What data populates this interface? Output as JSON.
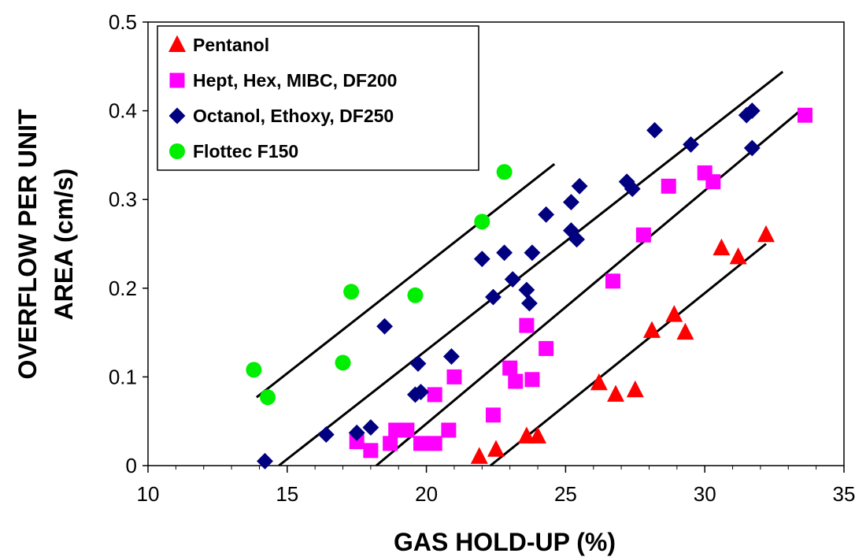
{
  "chart_data": {
    "type": "scatter",
    "title": "",
    "xlabel": "GAS HOLD-UP (%)",
    "ylabel_lines": [
      "OVERFLOW PER UNIT",
      "AREA (cm/s)"
    ],
    "xlim": [
      10,
      35
    ],
    "ylim": [
      0,
      0.5
    ],
    "x_ticks": [
      10,
      15,
      20,
      25,
      30,
      35
    ],
    "y_ticks": [
      0,
      0.1,
      0.2,
      0.3,
      0.4,
      0.5
    ],
    "x_tick_labels": [
      "10",
      "15",
      "20",
      "25",
      "30",
      "35"
    ],
    "y_tick_labels": [
      "0",
      "0.1",
      "0.2",
      "0.3",
      "0.4",
      "0.5"
    ],
    "grid": false,
    "legend_position": "top-left",
    "series": [
      {
        "name": "Pentanol",
        "marker": "triangle",
        "color": "#ff0000",
        "points": [
          [
            21.9,
            0.01
          ],
          [
            22.5,
            0.018
          ],
          [
            23.6,
            0.033
          ],
          [
            24.0,
            0.033
          ],
          [
            26.2,
            0.093
          ],
          [
            26.8,
            0.08
          ],
          [
            27.5,
            0.085
          ],
          [
            28.1,
            0.152
          ],
          [
            28.9,
            0.17
          ],
          [
            29.3,
            0.15
          ],
          [
            30.6,
            0.245
          ],
          [
            31.2,
            0.235
          ],
          [
            32.2,
            0.26
          ]
        ]
      },
      {
        "name": "Hept, Hex,  MIBC, DF200",
        "marker": "square",
        "color": "#ff00ff",
        "points": [
          [
            17.5,
            0.027
          ],
          [
            18.0,
            0.017
          ],
          [
            18.7,
            0.025
          ],
          [
            18.9,
            0.04
          ],
          [
            19.3,
            0.04
          ],
          [
            19.8,
            0.025
          ],
          [
            20.3,
            0.025
          ],
          [
            20.3,
            0.08
          ],
          [
            20.8,
            0.04
          ],
          [
            21.0,
            0.1
          ],
          [
            22.4,
            0.057
          ],
          [
            23.0,
            0.11
          ],
          [
            23.2,
            0.095
          ],
          [
            23.6,
            0.158
          ],
          [
            23.8,
            0.097
          ],
          [
            24.3,
            0.132
          ],
          [
            26.7,
            0.208
          ],
          [
            27.8,
            0.26
          ],
          [
            28.7,
            0.315
          ],
          [
            30.0,
            0.33
          ],
          [
            30.3,
            0.32
          ],
          [
            33.6,
            0.395
          ]
        ]
      },
      {
        "name": "Octanol, Ethoxy, DF250",
        "marker": "diamond",
        "color": "#000080",
        "points": [
          [
            14.2,
            0.005
          ],
          [
            16.4,
            0.035
          ],
          [
            17.5,
            0.037
          ],
          [
            18.0,
            0.043
          ],
          [
            18.5,
            0.157
          ],
          [
            19.6,
            0.08
          ],
          [
            19.7,
            0.115
          ],
          [
            19.8,
            0.083
          ],
          [
            20.9,
            0.123
          ],
          [
            22.0,
            0.233
          ],
          [
            22.4,
            0.19
          ],
          [
            22.8,
            0.24
          ],
          [
            23.1,
            0.21
          ],
          [
            23.6,
            0.198
          ],
          [
            23.7,
            0.183
          ],
          [
            23.8,
            0.24
          ],
          [
            24.3,
            0.283
          ],
          [
            25.2,
            0.297
          ],
          [
            25.2,
            0.265
          ],
          [
            25.4,
            0.255
          ],
          [
            25.5,
            0.315
          ],
          [
            27.2,
            0.32
          ],
          [
            27.4,
            0.312
          ],
          [
            28.2,
            0.378
          ],
          [
            29.5,
            0.362
          ],
          [
            31.5,
            0.395
          ],
          [
            31.7,
            0.4
          ],
          [
            31.7,
            0.358
          ]
        ]
      },
      {
        "name": "Flottec F150",
        "marker": "circle",
        "color": "#00ee00",
        "points": [
          [
            13.8,
            0.108
          ],
          [
            14.3,
            0.077
          ],
          [
            17.0,
            0.116
          ],
          [
            17.3,
            0.196
          ],
          [
            19.6,
            0.192
          ],
          [
            22.0,
            0.275
          ],
          [
            22.8,
            0.331
          ]
        ]
      }
    ],
    "fit_lines": [
      {
        "x": [
          13.9,
          24.6
        ],
        "y": [
          0.077,
          0.34
        ]
      },
      {
        "x": [
          14.7,
          32.8
        ],
        "y": [
          0.0,
          0.444
        ]
      },
      {
        "x": [
          18.2,
          33.5
        ],
        "y": [
          0.0,
          0.402
        ]
      },
      {
        "x": [
          22.3,
          32.2
        ],
        "y": [
          0.0,
          0.25
        ]
      }
    ]
  }
}
